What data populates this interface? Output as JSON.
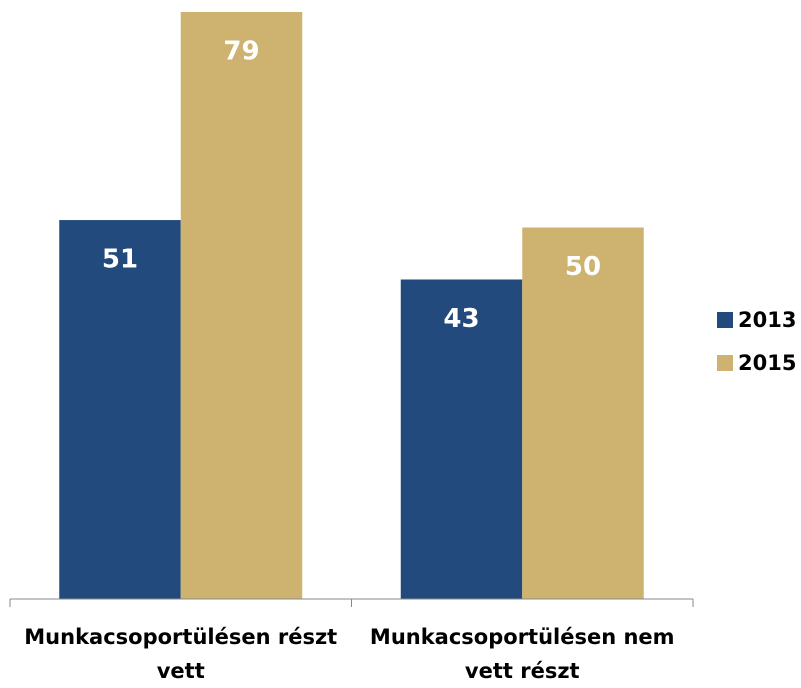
{
  "chart_data": {
    "type": "bar",
    "categories": [
      "Munkacsoportülésen részt vett",
      "Munkacsoportülésen nem vett részt"
    ],
    "series": [
      {
        "name": "2013",
        "color": "#234a7c",
        "values": [
          51,
          43
        ]
      },
      {
        "name": "2015",
        "color": "#cdb36f",
        "values": [
          79,
          50
        ]
      }
    ]
  }
}
